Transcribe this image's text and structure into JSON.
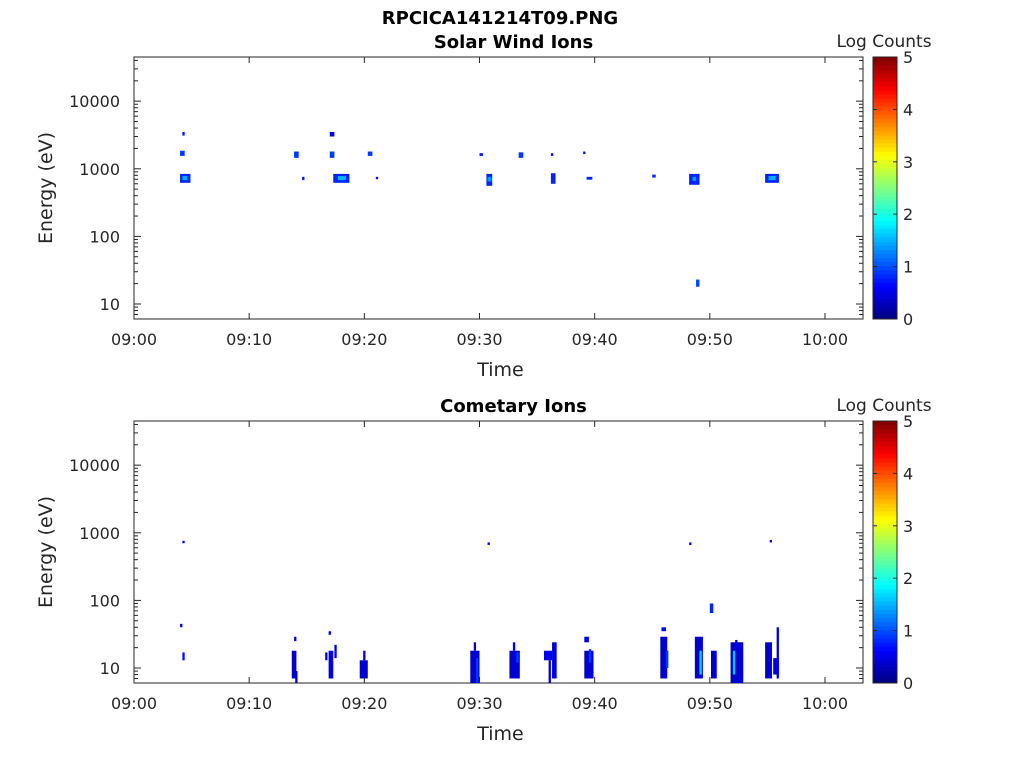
{
  "figure_title": "RPCICA141214T09.PNG",
  "colorbar": {
    "label": "Log Counts",
    "ticks": [
      "0",
      "1",
      "2",
      "3",
      "4",
      "5"
    ],
    "min": 0,
    "max": 5
  },
  "chart_data": [
    {
      "type": "heatmap",
      "title": "Solar Wind Ions",
      "xlabel": "Time",
      "ylabel": "Energy (eV)",
      "x_ticks": [
        "09:00",
        "09:10",
        "09:20",
        "09:30",
        "09:40",
        "09:50",
        "10:00"
      ],
      "y_ticks": [
        "10",
        "100",
        "1000",
        "10000"
      ],
      "y_scale": "log",
      "xlim_minutes": [
        0,
        63.3
      ],
      "ylim": [
        6,
        45000
      ],
      "cells": [
        {
          "t0": 4.0,
          "t1": 4.9,
          "e0": 620,
          "e1": 840,
          "v": 0.8
        },
        {
          "t0": 4.2,
          "t1": 4.6,
          "e0": 680,
          "e1": 780,
          "v": 1.5
        },
        {
          "t0": 4.0,
          "t1": 4.4,
          "e0": 1550,
          "e1": 1850,
          "v": 0.9
        },
        {
          "t0": 4.2,
          "t1": 4.4,
          "e0": 3100,
          "e1": 3500,
          "v": 0.7
        },
        {
          "t0": 13.9,
          "t1": 14.3,
          "e0": 1450,
          "e1": 1800,
          "v": 0.9
        },
        {
          "t0": 14.6,
          "t1": 14.8,
          "e0": 680,
          "e1": 760,
          "v": 0.7
        },
        {
          "t0": 17.0,
          "t1": 17.4,
          "e0": 3000,
          "e1": 3500,
          "v": 0.6
        },
        {
          "t0": 17.0,
          "t1": 17.4,
          "e0": 1450,
          "e1": 1800,
          "v": 0.9
        },
        {
          "t0": 17.3,
          "t1": 18.7,
          "e0": 620,
          "e1": 840,
          "v": 0.8
        },
        {
          "t0": 17.7,
          "t1": 18.4,
          "e0": 680,
          "e1": 780,
          "v": 1.5
        },
        {
          "t0": 20.3,
          "t1": 20.7,
          "e0": 1550,
          "e1": 1800,
          "v": 0.9
        },
        {
          "t0": 21.0,
          "t1": 21.2,
          "e0": 700,
          "e1": 760,
          "v": 0.7
        },
        {
          "t0": 30.0,
          "t1": 30.3,
          "e0": 1550,
          "e1": 1700,
          "v": 0.7
        },
        {
          "t0": 30.6,
          "t1": 31.1,
          "e0": 560,
          "e1": 840,
          "v": 0.8
        },
        {
          "t0": 30.7,
          "t1": 31.0,
          "e0": 650,
          "e1": 760,
          "v": 1.4
        },
        {
          "t0": 33.4,
          "t1": 33.8,
          "e0": 1450,
          "e1": 1750,
          "v": 0.9
        },
        {
          "t0": 36.2,
          "t1": 36.6,
          "e0": 600,
          "e1": 860,
          "v": 0.8
        },
        {
          "t0": 36.2,
          "t1": 36.4,
          "e0": 1550,
          "e1": 1700,
          "v": 0.7
        },
        {
          "t0": 39.0,
          "t1": 39.2,
          "e0": 1650,
          "e1": 1800,
          "v": 0.7
        },
        {
          "t0": 39.3,
          "t1": 39.8,
          "e0": 690,
          "e1": 760,
          "v": 0.8
        },
        {
          "t0": 45.0,
          "t1": 45.3,
          "e0": 740,
          "e1": 820,
          "v": 0.8
        },
        {
          "t0": 48.2,
          "t1": 49.1,
          "e0": 580,
          "e1": 840,
          "v": 0.8
        },
        {
          "t0": 48.5,
          "t1": 48.8,
          "e0": 660,
          "e1": 760,
          "v": 1.4
        },
        {
          "t0": 48.8,
          "t1": 49.1,
          "e0": 18,
          "e1": 23,
          "v": 1.0
        },
        {
          "t0": 54.8,
          "t1": 56.0,
          "e0": 620,
          "e1": 840,
          "v": 0.8
        },
        {
          "t0": 55.1,
          "t1": 55.7,
          "e0": 680,
          "e1": 780,
          "v": 1.5
        }
      ]
    },
    {
      "type": "heatmap",
      "title": "Cometary Ions",
      "xlabel": "Time",
      "ylabel": "Energy (eV)",
      "x_ticks": [
        "09:00",
        "09:10",
        "09:20",
        "09:30",
        "09:40",
        "09:50",
        "10:00"
      ],
      "y_ticks": [
        "10",
        "100",
        "1000",
        "10000"
      ],
      "y_scale": "log",
      "xlim_minutes": [
        0,
        63.3
      ],
      "ylim": [
        6,
        45000
      ],
      "cells": [
        {
          "t0": 4.2,
          "t1": 4.4,
          "e0": 700,
          "e1": 760,
          "v": 0.6
        },
        {
          "t0": 4.0,
          "t1": 4.2,
          "e0": 40,
          "e1": 45,
          "v": 0.6
        },
        {
          "t0": 4.2,
          "t1": 4.4,
          "e0": 13,
          "e1": 17,
          "v": 0.7
        },
        {
          "t0": 13.7,
          "t1": 14.1,
          "e0": 7,
          "e1": 18,
          "v": 0.4
        },
        {
          "t0": 14.0,
          "t1": 14.2,
          "e0": 6,
          "e1": 9,
          "v": 0.4
        },
        {
          "t0": 13.9,
          "t1": 14.1,
          "e0": 25,
          "e1": 29,
          "v": 0.5
        },
        {
          "t0": 16.6,
          "t1": 16.8,
          "e0": 13,
          "e1": 17,
          "v": 0.5
        },
        {
          "t0": 16.9,
          "t1": 17.3,
          "e0": 7,
          "e1": 18,
          "v": 0.5
        },
        {
          "t0": 16.9,
          "t1": 17.1,
          "e0": 31,
          "e1": 35,
          "v": 0.5
        },
        {
          "t0": 17.4,
          "t1": 17.6,
          "e0": 14,
          "e1": 22,
          "v": 0.4
        },
        {
          "t0": 19.6,
          "t1": 20.3,
          "e0": 7,
          "e1": 13,
          "v": 0.4
        },
        {
          "t0": 19.9,
          "t1": 20.1,
          "e0": 13,
          "e1": 18,
          "v": 0.4
        },
        {
          "t0": 29.2,
          "t1": 30.0,
          "e0": 6,
          "e1": 18,
          "v": 0.4
        },
        {
          "t0": 29.5,
          "t1": 29.7,
          "e0": 18,
          "e1": 24,
          "v": 0.5
        },
        {
          "t0": 29.7,
          "t1": 29.9,
          "e0": 6,
          "e1": 14,
          "v": 0.9
        },
        {
          "t0": 30.7,
          "t1": 30.9,
          "e0": 660,
          "e1": 720,
          "v": 0.6
        },
        {
          "t0": 32.6,
          "t1": 33.5,
          "e0": 7,
          "e1": 18,
          "v": 0.4
        },
        {
          "t0": 32.9,
          "t1": 33.1,
          "e0": 18,
          "e1": 24,
          "v": 0.5
        },
        {
          "t0": 33.2,
          "t1": 33.4,
          "e0": 12,
          "e1": 17,
          "v": 0.9
        },
        {
          "t0": 35.6,
          "t1": 36.3,
          "e0": 13,
          "e1": 18,
          "v": 0.6
        },
        {
          "t0": 36.0,
          "t1": 36.2,
          "e0": 6,
          "e1": 13,
          "v": 0.5
        },
        {
          "t0": 36.3,
          "t1": 36.7,
          "e0": 7,
          "e1": 24,
          "v": 0.4
        },
        {
          "t0": 39.1,
          "t1": 39.9,
          "e0": 7,
          "e1": 18,
          "v": 0.4
        },
        {
          "t0": 39.1,
          "t1": 39.5,
          "e0": 24,
          "e1": 29,
          "v": 0.5
        },
        {
          "t0": 39.5,
          "t1": 39.7,
          "e0": 12,
          "e1": 19,
          "v": 0.9
        },
        {
          "t0": 45.7,
          "t1": 46.3,
          "e0": 7,
          "e1": 29,
          "v": 0.4
        },
        {
          "t0": 45.8,
          "t1": 46.2,
          "e0": 35,
          "e1": 40,
          "v": 0.7
        },
        {
          "t0": 46.2,
          "t1": 46.4,
          "e0": 10,
          "e1": 18,
          "v": 0.9
        },
        {
          "t0": 48.2,
          "t1": 48.4,
          "e0": 660,
          "e1": 720,
          "v": 0.6
        },
        {
          "t0": 48.7,
          "t1": 49.4,
          "e0": 7,
          "e1": 29,
          "v": 0.4
        },
        {
          "t0": 49.1,
          "t1": 49.3,
          "e0": 8,
          "e1": 18,
          "v": 1.7
        },
        {
          "t0": 50.0,
          "t1": 50.3,
          "e0": 65,
          "e1": 90,
          "v": 0.8
        },
        {
          "t0": 50.1,
          "t1": 50.6,
          "e0": 7,
          "e1": 18,
          "v": 0.4
        },
        {
          "t0": 51.8,
          "t1": 52.9,
          "e0": 6,
          "e1": 24,
          "v": 0.4
        },
        {
          "t0": 52.0,
          "t1": 52.2,
          "e0": 8,
          "e1": 18,
          "v": 1.6
        },
        {
          "t0": 52.2,
          "t1": 52.4,
          "e0": 18,
          "e1": 26,
          "v": 0.5
        },
        {
          "t0": 54.8,
          "t1": 55.4,
          "e0": 7,
          "e1": 24,
          "v": 0.4
        },
        {
          "t0": 55.2,
          "t1": 55.4,
          "e0": 720,
          "e1": 780,
          "v": 0.6
        },
        {
          "t0": 55.5,
          "t1": 56.0,
          "e0": 8,
          "e1": 14,
          "v": 0.5
        },
        {
          "t0": 55.8,
          "t1": 56.0,
          "e0": 7,
          "e1": 40,
          "v": 0.4
        }
      ]
    }
  ]
}
